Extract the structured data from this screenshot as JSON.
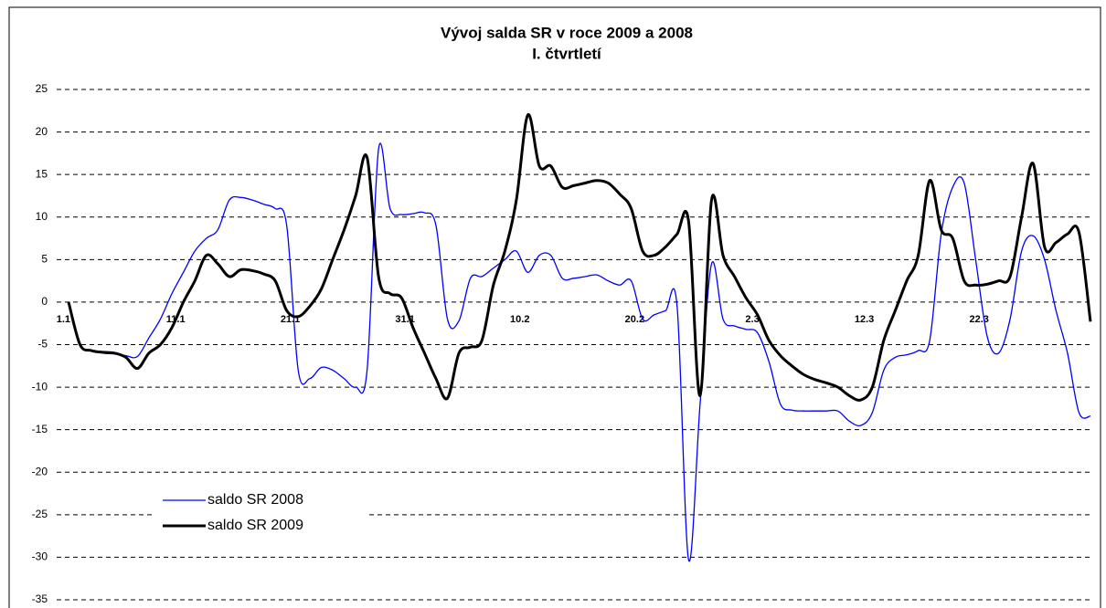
{
  "chart_data": {
    "type": "line",
    "title": "Vývoj salda SR v roce 2009 a 2008",
    "subtitle": "I. čtvrtletí",
    "categories": [
      "1.1",
      null,
      null,
      null,
      null,
      null,
      null,
      null,
      null,
      null,
      "11.1",
      null,
      null,
      null,
      null,
      null,
      null,
      null,
      null,
      null,
      "21.1",
      null,
      null,
      null,
      null,
      null,
      null,
      null,
      null,
      null,
      "31.1",
      null,
      null,
      null,
      null,
      null,
      null,
      null,
      null,
      null,
      "10.2",
      null,
      null,
      null,
      null,
      null,
      null,
      null,
      null,
      null,
      "20.2",
      null,
      null,
      null,
      null,
      null,
      null,
      null,
      null,
      null,
      "2.3",
      null,
      null,
      null,
      null,
      null,
      null,
      null,
      null,
      null,
      "12.3",
      null,
      null,
      null,
      null,
      null,
      null,
      null,
      null,
      null,
      "22.3",
      null,
      null,
      null,
      null,
      null,
      null,
      null,
      null,
      null
    ],
    "series": [
      {
        "name": "saldo SR 2008",
        "color": "#0000ff",
        "values": [
          0,
          -5,
          -5.7,
          -6,
          -6.1,
          -6.3,
          -6.4,
          -4.2,
          -2,
          1,
          3.5,
          6,
          7.5,
          8.5,
          12,
          12.3,
          12,
          11.5,
          11,
          9,
          -8,
          -9,
          -7.7,
          -8,
          -9,
          -10,
          -8,
          18,
          11,
          10.3,
          10.4,
          10.5,
          9,
          -2,
          -2.2,
          2.8,
          3,
          4,
          5,
          6,
          3.5,
          5.5,
          5.5,
          2.8,
          2.8,
          3,
          3.2,
          2.5,
          2,
          2.5,
          -2,
          -1.5,
          -1,
          -0.5,
          -30.3,
          -12,
          4.5,
          -2,
          -2.8,
          -3.2,
          -3.6,
          -7,
          -12,
          -12.7,
          -12.8,
          -12.8,
          -12.8,
          -12.8,
          -14,
          -14.5,
          -13,
          -8,
          -6.5,
          -6.2,
          -5.7,
          -4.5,
          8,
          13.5,
          14,
          5,
          -4,
          -6,
          -2,
          6,
          7.8,
          5,
          -1,
          -6,
          -13,
          -13.4
        ]
      },
      {
        "name": "saldo SR 2009",
        "color": "#000000",
        "values": [
          0,
          -5,
          -5.7,
          -5.9,
          -6,
          -6.5,
          -7.8,
          -6,
          -5,
          -3,
          0,
          2.5,
          5.5,
          4.5,
          3,
          3.8,
          3.7,
          3.3,
          2.5,
          -1,
          -1.7,
          -0.5,
          1.5,
          5,
          8.5,
          12.5,
          17,
          3,
          1,
          0.5,
          -3,
          -6,
          -9,
          -11.3,
          -6,
          -5.3,
          -4.5,
          2,
          6,
          12,
          22,
          16,
          16,
          13.5,
          13.7,
          14,
          14.3,
          14,
          12.7,
          11,
          6,
          5.5,
          6.5,
          8,
          9.5,
          -11,
          12,
          5.5,
          3,
          0.5,
          -1.5,
          -4.5,
          -6.3,
          -7.5,
          -8.5,
          -9.1,
          -9.5,
          -10,
          -11,
          -11.5,
          -10,
          -4.5,
          -1,
          2.5,
          5.5,
          14.3,
          8.5,
          7.5,
          2.5,
          2,
          2.1,
          2.5,
          3,
          10,
          16.3,
          6.5,
          7,
          8,
          8.2,
          -2.3
        ]
      }
    ],
    "ylim": [
      -35,
      25
    ],
    "yticks": [
      -35,
      -30,
      -25,
      -20,
      -15,
      -10,
      -5,
      0,
      5,
      10,
      15,
      20,
      25
    ],
    "grid": true,
    "legend": "lower left"
  }
}
